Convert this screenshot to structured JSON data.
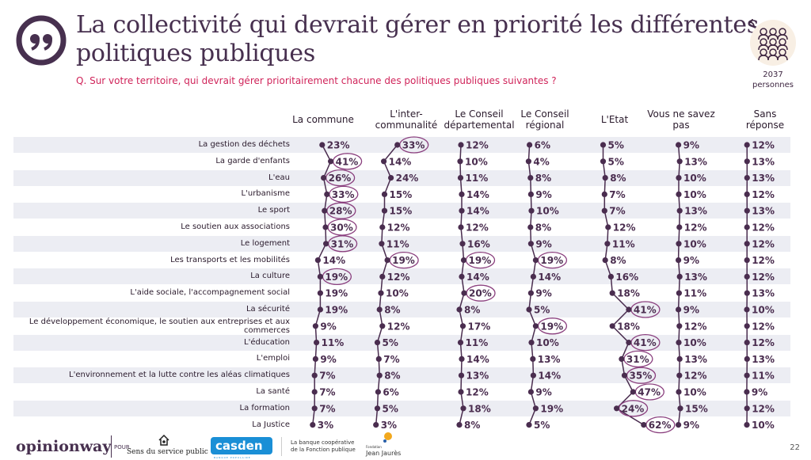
{
  "header": {
    "title_line1": "La collectivité qui devrait gérer en priorité les différentes",
    "title_line2": "politiques publiques",
    "question": "Q. Sur votre territoire, qui devrait gérer prioritairement chacune des politiques publiques suivantes ?",
    "sample_size": "2037",
    "sample_label": "personnes"
  },
  "colors": {
    "accent": "#d0245a",
    "primary": "#47304f",
    "band": "#ecedf3",
    "highlight_ring": "#8a3f7e"
  },
  "chart_data": {
    "type": "table",
    "title": "La collectivité qui devrait gérer en priorité les différentes politiques publiques",
    "columns": [
      "La commune",
      "L'inter-\ncommunalité",
      "Le Conseil\ndépartemental",
      "Le Conseil\nrégional",
      "L'Etat",
      "Vous ne savez\npas",
      "Sans\nréponse"
    ],
    "rows": [
      "La gestion des déchets",
      "La garde d'enfants",
      "L'eau",
      "L'urbanisme",
      "Le sport",
      "Le soutien aux associations",
      "Le logement",
      "Les transports et les mobilités",
      "La culture",
      "L'aide sociale, l'accompagnement social",
      "La sécurité",
      "Le développement économique, le soutien aux entreprises et aux commerces",
      "L'éducation",
      "L'emploi",
      "L'environnement et la lutte contre les aléas climatiques",
      "La santé",
      "La formation",
      "La Justice"
    ],
    "series": [
      {
        "name": "La commune",
        "values": [
          23,
          41,
          26,
          33,
          28,
          30,
          31,
          14,
          19,
          19,
          19,
          9,
          11,
          9,
          7,
          7,
          7,
          3
        ]
      },
      {
        "name": "L'intercommunalité",
        "values": [
          33,
          14,
          24,
          15,
          15,
          12,
          11,
          19,
          12,
          10,
          8,
          12,
          5,
          7,
          8,
          6,
          5,
          3
        ]
      },
      {
        "name": "Le Conseil départemental",
        "values": [
          12,
          10,
          11,
          14,
          14,
          12,
          16,
          19,
          14,
          20,
          8,
          17,
          11,
          14,
          13,
          12,
          18,
          8
        ]
      },
      {
        "name": "Le Conseil régional",
        "values": [
          6,
          4,
          8,
          9,
          10,
          8,
          9,
          19,
          14,
          9,
          5,
          19,
          10,
          13,
          14,
          9,
          19,
          5
        ]
      },
      {
        "name": "L'Etat",
        "values": [
          5,
          5,
          8,
          7,
          7,
          12,
          11,
          8,
          16,
          18,
          41,
          18,
          41,
          31,
          35,
          47,
          24,
          62
        ]
      },
      {
        "name": "Vous ne savez pas",
        "values": [
          9,
          13,
          10,
          10,
          13,
          12,
          10,
          9,
          13,
          11,
          9,
          12,
          10,
          13,
          12,
          10,
          15,
          9
        ]
      },
      {
        "name": "Sans réponse",
        "values": [
          12,
          13,
          13,
          12,
          13,
          12,
          12,
          12,
          12,
          13,
          10,
          12,
          12,
          13,
          11,
          9,
          12,
          10
        ]
      }
    ],
    "highlighted": [
      {
        "series": 0,
        "rows": [
          1,
          2,
          3,
          4,
          5,
          6,
          8
        ]
      },
      {
        "series": 1,
        "rows": [
          0,
          7
        ]
      },
      {
        "series": 2,
        "rows": [
          7,
          9
        ]
      },
      {
        "series": 3,
        "rows": [
          7,
          11
        ]
      },
      {
        "series": 4,
        "rows": [
          10,
          12,
          13,
          14,
          15,
          16,
          17
        ]
      },
      {
        "series": 5,
        "rows": []
      },
      {
        "series": 6,
        "rows": []
      }
    ],
    "unit": "%"
  },
  "footer": {
    "brand": "opinionway",
    "pour": "POUR",
    "partner1": "Sens du service public",
    "partner2": "casden",
    "partner2_sub": "BANQUE POPULAIRE",
    "partner2_tagline_1": "La banque coopérative",
    "partner2_tagline_2": "de la Fonction publique",
    "partner3_small": "Fondation",
    "partner3": "Jean Jaurès",
    "page_number": "22"
  }
}
